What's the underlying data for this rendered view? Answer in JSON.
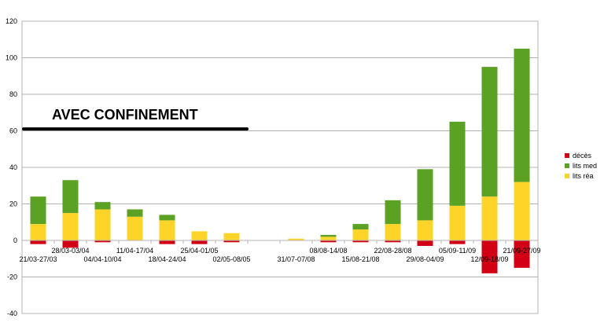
{
  "chart_data": {
    "type": "bar",
    "stacked": true,
    "categories": [
      "21/03-27/03",
      "28/03-03/04",
      "04/04-10/04",
      "11/04-17/04",
      "18/04-24/04",
      "25/04-01/05",
      "02/05-08/05",
      "",
      "31/07-07/08",
      "08/08-14/08",
      "15/08-21/08",
      "22/08-28/08",
      "29/08-04/09",
      "05/09-11/09",
      "12/09-18/09",
      "21/09-27/09"
    ],
    "series": [
      {
        "name": "décès",
        "color": "#d10014",
        "values": [
          -2,
          -4,
          -1,
          0,
          -2,
          -2,
          -1,
          0,
          0,
          -1,
          -1,
          -1,
          -3,
          -2,
          -18,
          -15
        ]
      },
      {
        "name": "lits med",
        "color": "#5aa124",
        "values": [
          15,
          18,
          4,
          4,
          3,
          0,
          0,
          0,
          0,
          1,
          3,
          13,
          28,
          46,
          71,
          73
        ]
      },
      {
        "name": "lits réa",
        "color": "#ffd428",
        "values": [
          9,
          15,
          17,
          13,
          11,
          5,
          4,
          0,
          1,
          2,
          6,
          9,
          11,
          19,
          24,
          32
        ]
      }
    ],
    "ylim": [
      -40,
      120
    ],
    "yticks": [
      -40,
      -20,
      0,
      20,
      40,
      60,
      80,
      100,
      120
    ],
    "grid": true,
    "legend": "right",
    "annotation": {
      "text": "AVEC CONFINEMENT",
      "y": 61
    }
  }
}
